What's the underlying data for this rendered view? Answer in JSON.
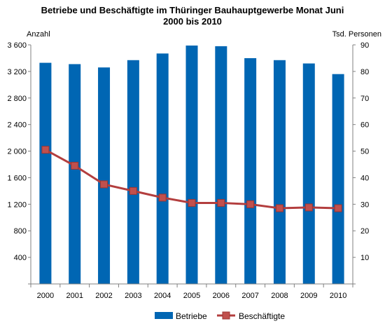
{
  "chart_data": {
    "type": "bar",
    "title": "Betriebe  und Beschäftigte  im Thüringer Bauhauptgewerbe  Monat Juni",
    "subtitle": "2000 bis 2010",
    "categories": [
      "2000",
      "2001",
      "2002",
      "2003",
      "2004",
      "2005",
      "2006",
      "2007",
      "2008",
      "2009",
      "2010"
    ],
    "series": [
      {
        "name": "Betriebe",
        "type": "bar",
        "axis": "left",
        "color": "#0066b3",
        "values": [
          3330,
          3310,
          3260,
          3370,
          3470,
          3590,
          3580,
          3400,
          3370,
          3320,
          3160
        ]
      },
      {
        "name": "Beschäftigte",
        "type": "line",
        "axis": "right",
        "color": "#b33e3e",
        "marker_color": "#c0504d",
        "values": [
          50.5,
          44.5,
          37.5,
          35.0,
          32.5,
          30.5,
          30.5,
          30.0,
          28.5,
          28.8,
          28.5
        ]
      }
    ],
    "ylabel_left": "Anzahl",
    "ylabel_right": "Tsd. Personen",
    "ylim_left": [
      0,
      3600
    ],
    "ylim_right": [
      0,
      90
    ],
    "yticks_left": [
      400,
      800,
      1200,
      1600,
      2000,
      2400,
      2800,
      3200,
      3600
    ],
    "ytick_labels_left": [
      "400",
      "800",
      "1 200",
      "1 600",
      "2 000",
      "2 400",
      "2 800",
      "3 200",
      "3 600"
    ],
    "yticks_right": [
      10,
      20,
      30,
      40,
      50,
      60,
      70,
      80,
      90
    ],
    "ytick_labels_right": [
      "10",
      "20",
      "30",
      "40",
      "50",
      "60",
      "70",
      "80",
      "90"
    ],
    "grid": false,
    "legend_position": "bottom"
  }
}
